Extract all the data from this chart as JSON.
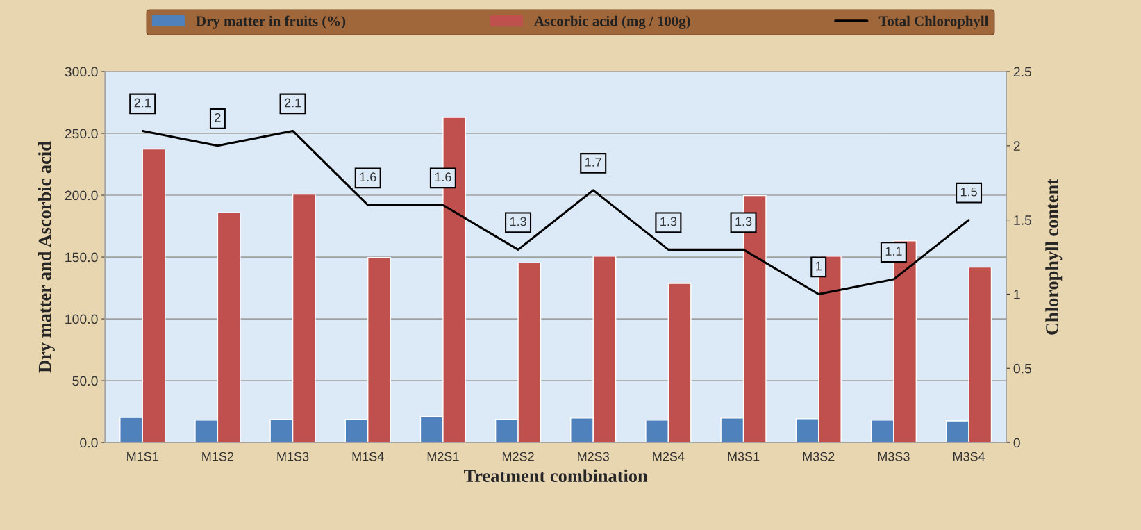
{
  "chart_data": {
    "type": "bar",
    "xlabel": "Treatment combination",
    "ylabel": "Dry matter and Ascorbic acid",
    "y2label": "Chlorophyll content",
    "categories": [
      "M1S1",
      "M1S2",
      "M1S3",
      "M1S4",
      "M2S1",
      "M2S2",
      "M2S3",
      "M2S4",
      "M3S1",
      "M3S2",
      "M3S3",
      "M3S4"
    ],
    "series": [
      {
        "name": "Dry matter in fruits (%)",
        "color": "#4f81bd",
        "values": [
          20.3,
          18.2,
          18.7,
          18.7,
          21.0,
          18.7,
          19.8,
          18.1,
          19.8,
          19.2,
          18.1,
          17.5
        ]
      },
      {
        "name": "Ascorbic acid (mg / 100g)",
        "color": "#c0504d",
        "values": [
          237.4,
          185.8,
          200.8,
          149.7,
          262.9,
          145.3,
          150.7,
          128.7,
          199.7,
          150.7,
          163.0,
          141.8
        ]
      },
      {
        "name": "Total Chlorophyll",
        "type": "line",
        "axis": "y2",
        "color": "#000000",
        "values": [
          2.1,
          2,
          2.1,
          1.6,
          1.6,
          1.3,
          1.7,
          1.3,
          1.3,
          1,
          1.1,
          1.5
        ],
        "value_labels": [
          "2.1",
          "2",
          "2.1",
          "1.6",
          "1.6",
          "1.3",
          "1.7",
          "1.3",
          "1.3",
          "1",
          "1.1",
          "1.5"
        ]
      }
    ],
    "ylim": [
      0,
      300
    ],
    "yticks": [
      {
        "value": 0,
        "label": "0.0"
      },
      {
        "value": 50,
        "label": "50.0"
      },
      {
        "value": 100,
        "label": "100.0"
      },
      {
        "value": 150,
        "label": "150.0"
      },
      {
        "value": 200,
        "label": "200.0"
      },
      {
        "value": 250,
        "label": "250.0"
      },
      {
        "value": 300,
        "label": "300.0"
      }
    ],
    "y2lim": [
      0,
      2.5
    ],
    "y2ticks": [
      0,
      0.5,
      1,
      1.5,
      2,
      2.5
    ],
    "grid": "y",
    "legend": "top"
  }
}
